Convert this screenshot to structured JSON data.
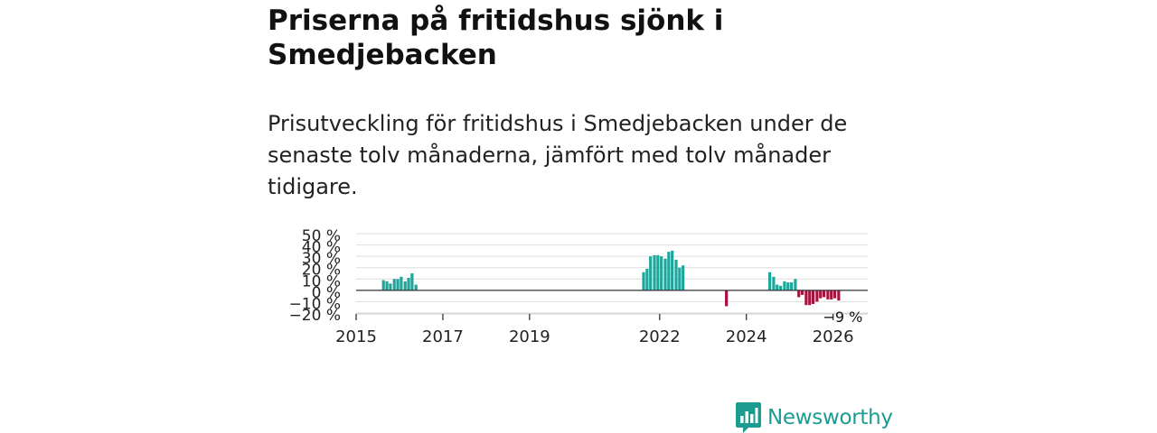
{
  "title": "Priserna på fritidshus sjönk i Smedjebacken",
  "subtitle": "Prisutveckling för fritidshus i Smedjebacken under de senaste tolv månaderna, jämfört med tolv månader tidigare.",
  "brand": {
    "name": "Newsworthy",
    "icon": "newsworthy-logo-icon",
    "color": "#1c9c91"
  },
  "colors": {
    "positive": "#20a59a",
    "negative": "#a3153f",
    "grid": "#dddddd",
    "zero_line": "#333333"
  },
  "chart_data": {
    "type": "bar",
    "title": "Priserna på fritidshus sjönk i Smedjebacken",
    "xlabel": "",
    "ylabel": "",
    "ylim": [
      -20,
      50
    ],
    "xlim": [
      2015.0,
      2026.8
    ],
    "y_ticks": [
      50,
      40,
      30,
      20,
      10,
      0,
      -10,
      -20
    ],
    "y_tick_labels": [
      "50 %",
      "40 %",
      "30 %",
      "20 %",
      "10 %",
      "0 %",
      "−10 %",
      "−20 %"
    ],
    "x_ticks": [
      2015,
      2017,
      2019,
      2022,
      2024,
      2026
    ],
    "x_tick_labels": [
      "2015",
      "2017",
      "2019",
      "2022",
      "2024",
      "2026"
    ],
    "grid": true,
    "annotation": {
      "label": "−9 %",
      "x": 2026.12,
      "y": -9
    },
    "series": [
      {
        "name": "Prisutveckling",
        "x": [
          2015.63,
          2015.71,
          2015.79,
          2015.88,
          2015.96,
          2016.04,
          2016.13,
          2016.21,
          2016.29,
          2016.38,
          2021.63,
          2021.71,
          2021.79,
          2021.88,
          2021.96,
          2022.04,
          2022.13,
          2022.21,
          2022.29,
          2022.38,
          2022.46,
          2022.54,
          2023.54,
          2024.54,
          2024.63,
          2024.71,
          2024.79,
          2024.88,
          2024.96,
          2025.04,
          2025.13,
          2025.21,
          2025.29,
          2025.38,
          2025.46,
          2025.54,
          2025.63,
          2025.71,
          2025.79,
          2025.88,
          2025.96,
          2026.04,
          2026.13
        ],
        "values": [
          9,
          8,
          6,
          10,
          10,
          12,
          8,
          11,
          15,
          5,
          16,
          19,
          30,
          31,
          31,
          30,
          28,
          34,
          35,
          27,
          20,
          22,
          -14,
          16,
          12,
          5,
          4,
          8,
          7,
          7,
          10,
          -6,
          -4,
          -13,
          -13,
          -12,
          -10,
          -7,
          -6,
          -8,
          -8,
          -7,
          -9
        ]
      }
    ]
  }
}
